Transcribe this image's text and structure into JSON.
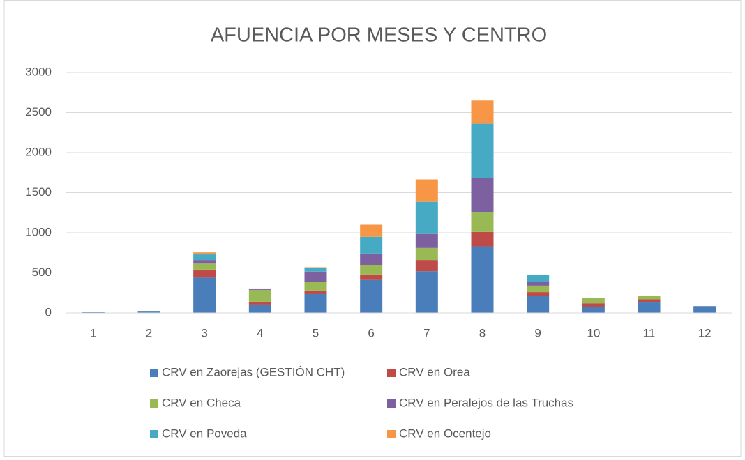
{
  "chart_data": {
    "type": "stacked_bar",
    "title": "AFUENCIA POR MESES Y CENTRO",
    "categories": [
      "1",
      "2",
      "3",
      "4",
      "5",
      "6",
      "7",
      "8",
      "9",
      "10",
      "11",
      "12"
    ],
    "series": [
      {
        "name": "CRV en Zaorejas (GESTIÓN CHT)",
        "color": "#4a7ebb",
        "values": [
          15,
          25,
          440,
          105,
          235,
          410,
          520,
          830,
          210,
          70,
          130,
          85
        ]
      },
      {
        "name": "CRV en Orea",
        "color": "#be4b48",
        "values": [
          0,
          0,
          100,
          35,
          45,
          70,
          140,
          180,
          50,
          50,
          40,
          0
        ]
      },
      {
        "name": "CRV en Checa",
        "color": "#98b954",
        "values": [
          0,
          0,
          75,
          145,
          105,
          120,
          150,
          250,
          80,
          70,
          40,
          0
        ]
      },
      {
        "name": "CRV en Peralejos de las Truchas",
        "color": "#7d60a0",
        "values": [
          0,
          0,
          45,
          10,
          130,
          140,
          175,
          420,
          50,
          0,
          0,
          0
        ]
      },
      {
        "name": "CRV en Poveda",
        "color": "#46aac5",
        "values": [
          0,
          0,
          70,
          5,
          45,
          210,
          400,
          680,
          80,
          0,
          0,
          0
        ]
      },
      {
        "name": "CRV en Ocentejo",
        "color": "#f79646",
        "values": [
          0,
          0,
          25,
          5,
          10,
          150,
          280,
          290,
          0,
          0,
          0,
          0
        ]
      }
    ],
    "ylim": [
      0,
      3000
    ],
    "yticks": [
      0,
      500,
      1000,
      1500,
      2000,
      2500,
      3000
    ],
    "grid": true
  }
}
